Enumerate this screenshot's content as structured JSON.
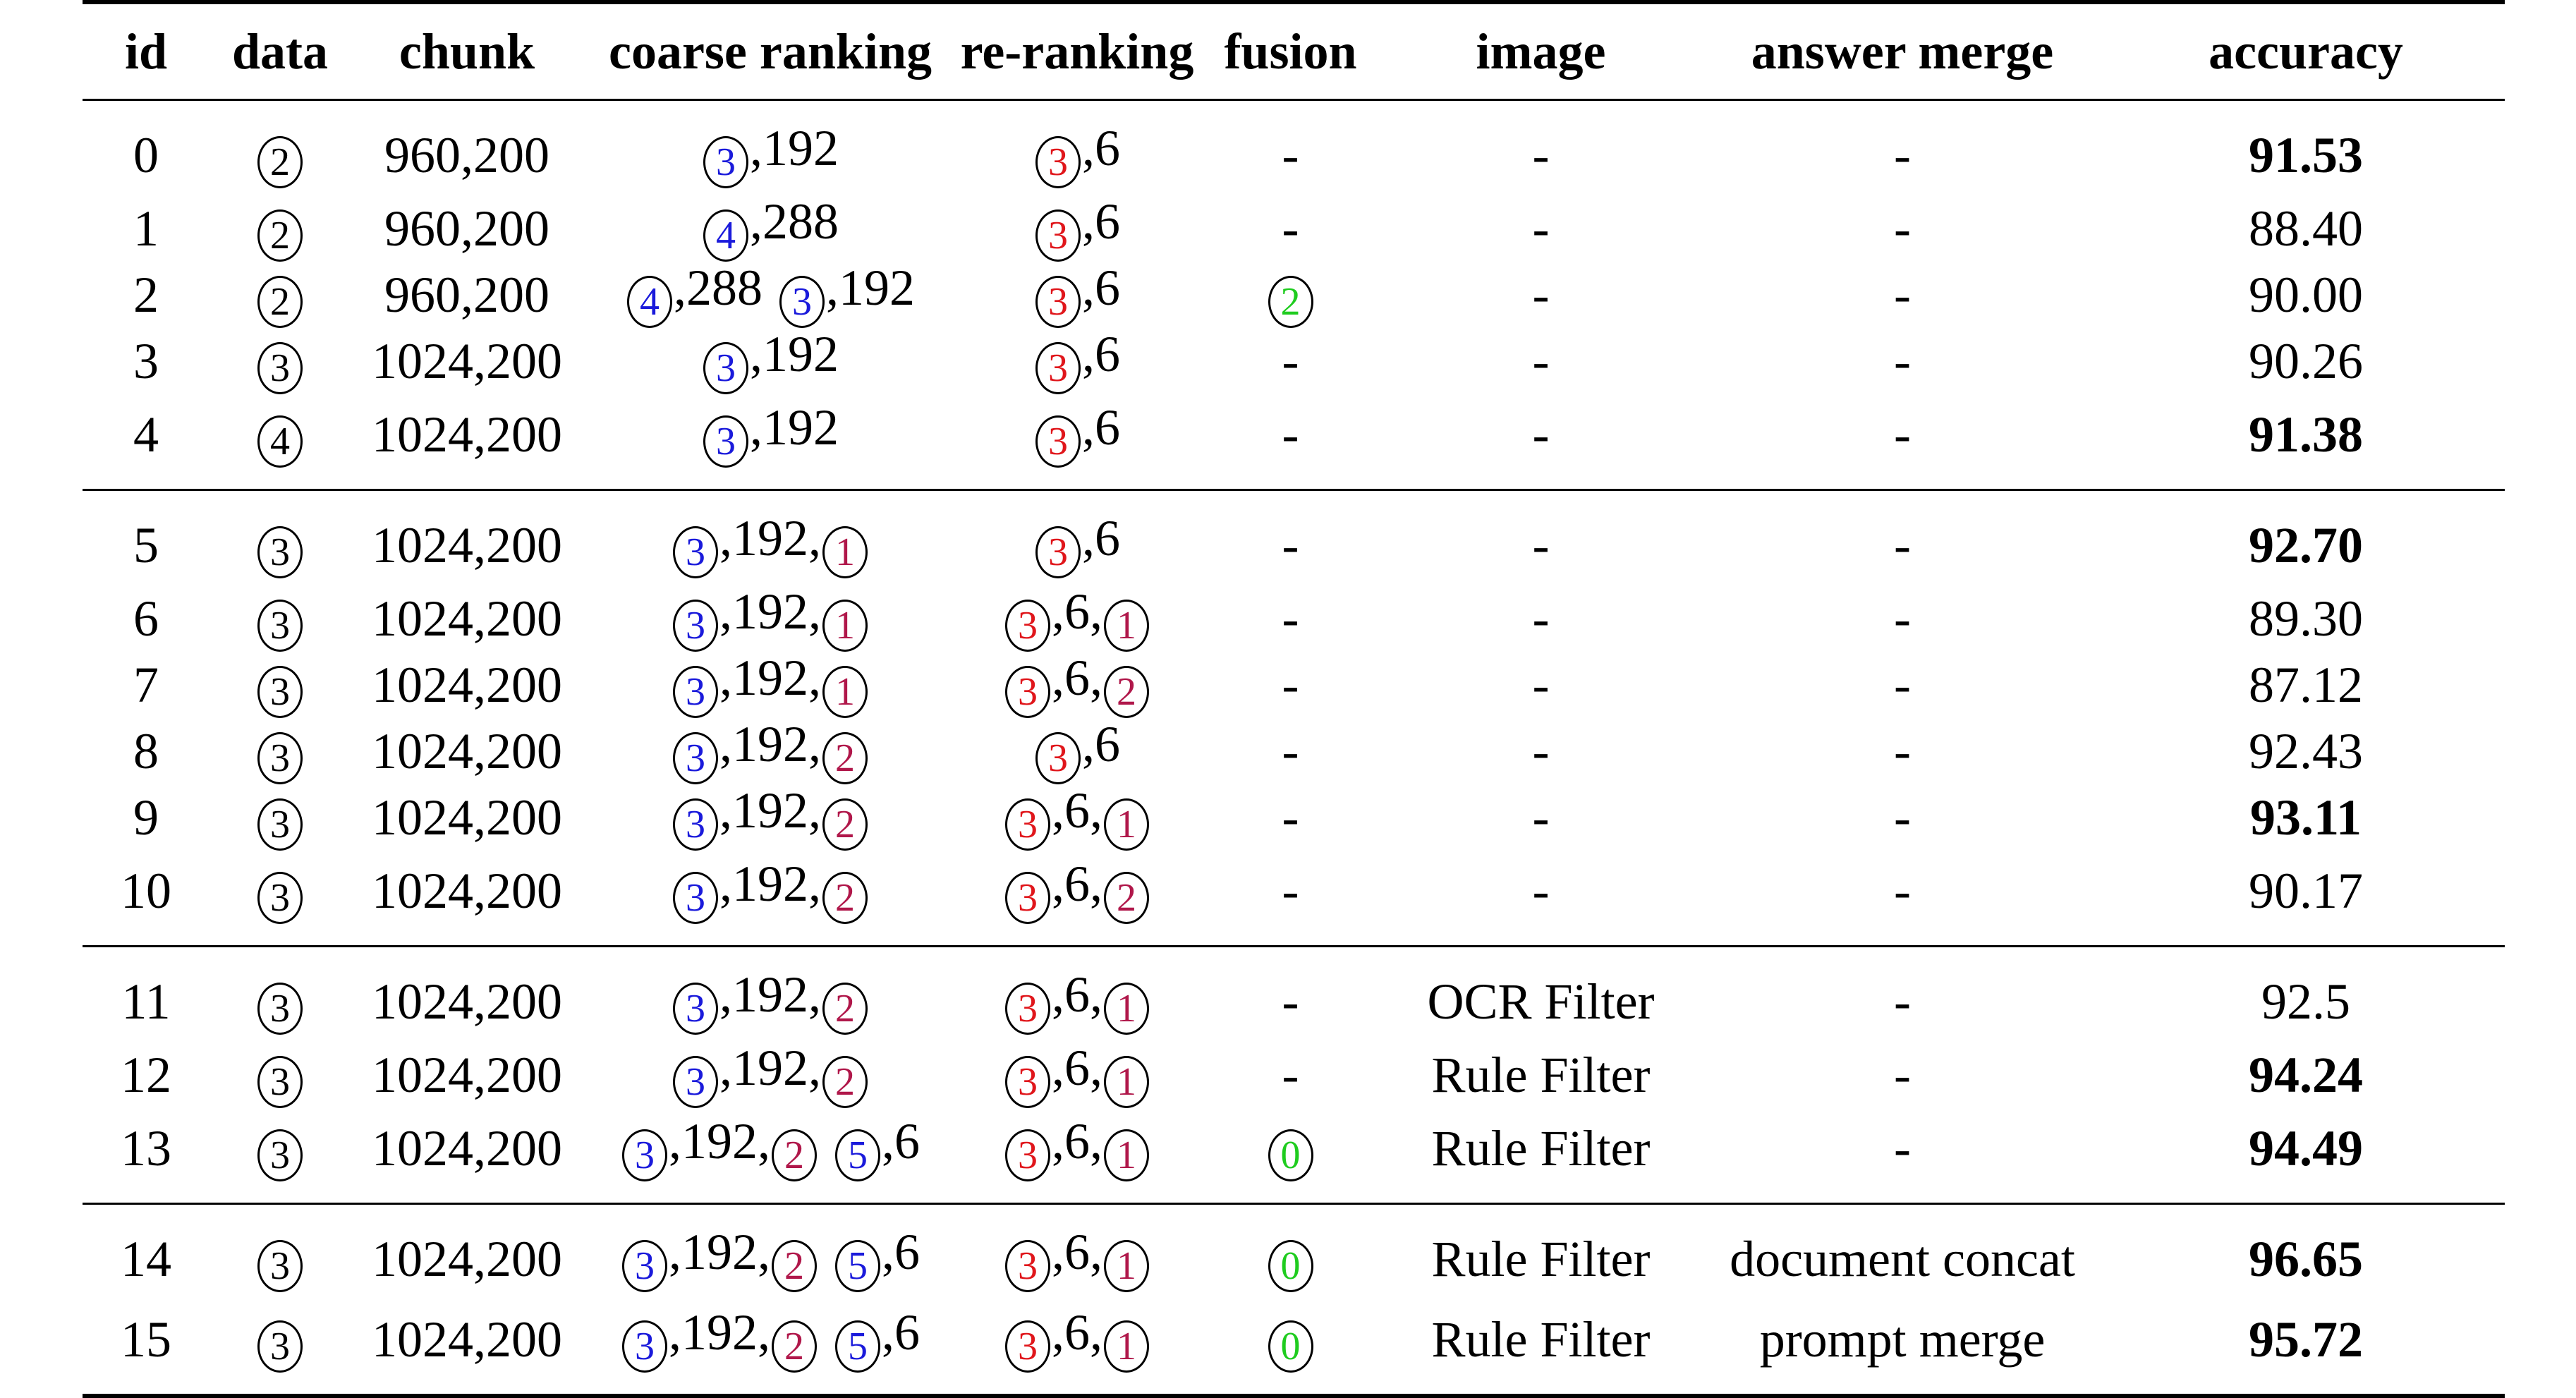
{
  "table": {
    "headers": {
      "id": "id",
      "data": "data",
      "chunk": "chunk",
      "coarse": "coarse ranking",
      "rerank": "re-ranking",
      "fusion": "fusion",
      "image": "image",
      "merge": "answer merge",
      "accuracy": "accuracy"
    },
    "colors": {
      "black": "#000000",
      "blue": "#1a1adb",
      "red": "#e0161b",
      "maroon": "#b0174a",
      "green": "#1fcc1f"
    },
    "groups": [
      [
        {
          "id": "0",
          "data": [
            {
              "c": "black",
              "n": "2"
            }
          ],
          "chunk": "960,200",
          "coarse": [
            {
              "c": "blue",
              "n": "3"
            },
            {
              "t": ",192"
            }
          ],
          "rerank": [
            {
              "c": "red",
              "n": "3"
            },
            {
              "t": ",6"
            }
          ],
          "fusion": [
            {
              "t": "-"
            }
          ],
          "image": "-",
          "merge": "-",
          "accuracy": "91.53",
          "bold": true
        },
        {
          "id": "1",
          "data": [
            {
              "c": "black",
              "n": "2"
            }
          ],
          "chunk": "960,200",
          "coarse": [
            {
              "c": "blue",
              "n": "4"
            },
            {
              "t": ",288"
            }
          ],
          "rerank": [
            {
              "c": "red",
              "n": "3"
            },
            {
              "t": ",6"
            }
          ],
          "fusion": [
            {
              "t": "-"
            }
          ],
          "image": "-",
          "merge": "-",
          "accuracy": "88.40",
          "bold": false
        },
        {
          "id": "2",
          "data": [
            {
              "c": "black",
              "n": "2"
            }
          ],
          "chunk": "960,200",
          "coarse": [
            {
              "c": "blue",
              "n": "4"
            },
            {
              "t": ",288"
            },
            {
              "g": true
            },
            {
              "c": "blue",
              "n": "3"
            },
            {
              "t": ",192"
            }
          ],
          "rerank": [
            {
              "c": "red",
              "n": "3"
            },
            {
              "t": ",6"
            }
          ],
          "fusion": [
            {
              "c": "green",
              "n": "2"
            }
          ],
          "image": "-",
          "merge": "-",
          "accuracy": "90.00",
          "bold": false
        },
        {
          "id": "3",
          "data": [
            {
              "c": "black",
              "n": "3"
            }
          ],
          "chunk": "1024,200",
          "coarse": [
            {
              "c": "blue",
              "n": "3"
            },
            {
              "t": ",192"
            }
          ],
          "rerank": [
            {
              "c": "red",
              "n": "3"
            },
            {
              "t": ",6"
            }
          ],
          "fusion": [
            {
              "t": "-"
            }
          ],
          "image": "-",
          "merge": "-",
          "accuracy": "90.26",
          "bold": false
        },
        {
          "id": "4",
          "data": [
            {
              "c": "black",
              "n": "4"
            }
          ],
          "chunk": "1024,200",
          "coarse": [
            {
              "c": "blue",
              "n": "3"
            },
            {
              "t": ",192"
            }
          ],
          "rerank": [
            {
              "c": "red",
              "n": "3"
            },
            {
              "t": ",6"
            }
          ],
          "fusion": [
            {
              "t": "-"
            }
          ],
          "image": "-",
          "merge": "-",
          "accuracy": "91.38",
          "bold": true
        }
      ],
      [
        {
          "id": "5",
          "data": [
            {
              "c": "black",
              "n": "3"
            }
          ],
          "chunk": "1024,200",
          "coarse": [
            {
              "c": "blue",
              "n": "3"
            },
            {
              "t": ",192,"
            },
            {
              "c": "maroon",
              "n": "1"
            }
          ],
          "rerank": [
            {
              "c": "red",
              "n": "3"
            },
            {
              "t": ",6"
            }
          ],
          "fusion": [
            {
              "t": "-"
            }
          ],
          "image": "-",
          "merge": "-",
          "accuracy": "92.70",
          "bold": true
        },
        {
          "id": "6",
          "data": [
            {
              "c": "black",
              "n": "3"
            }
          ],
          "chunk": "1024,200",
          "coarse": [
            {
              "c": "blue",
              "n": "3"
            },
            {
              "t": ",192,"
            },
            {
              "c": "maroon",
              "n": "1"
            }
          ],
          "rerank": [
            {
              "c": "red",
              "n": "3"
            },
            {
              "t": ",6,"
            },
            {
              "c": "maroon",
              "n": "1"
            }
          ],
          "fusion": [
            {
              "t": "-"
            }
          ],
          "image": "-",
          "merge": "-",
          "accuracy": "89.30",
          "bold": false
        },
        {
          "id": "7",
          "data": [
            {
              "c": "black",
              "n": "3"
            }
          ],
          "chunk": "1024,200",
          "coarse": [
            {
              "c": "blue",
              "n": "3"
            },
            {
              "t": ",192,"
            },
            {
              "c": "maroon",
              "n": "1"
            }
          ],
          "rerank": [
            {
              "c": "red",
              "n": "3"
            },
            {
              "t": ",6,"
            },
            {
              "c": "maroon",
              "n": "2"
            }
          ],
          "fusion": [
            {
              "t": "-"
            }
          ],
          "image": "-",
          "merge": "-",
          "accuracy": "87.12",
          "bold": false
        },
        {
          "id": "8",
          "data": [
            {
              "c": "black",
              "n": "3"
            }
          ],
          "chunk": "1024,200",
          "coarse": [
            {
              "c": "blue",
              "n": "3"
            },
            {
              "t": ",192,"
            },
            {
              "c": "maroon",
              "n": "2"
            }
          ],
          "rerank": [
            {
              "c": "red",
              "n": "3"
            },
            {
              "t": ",6"
            }
          ],
          "fusion": [
            {
              "t": "-"
            }
          ],
          "image": "-",
          "merge": "-",
          "accuracy": "92.43",
          "bold": false
        },
        {
          "id": "9",
          "data": [
            {
              "c": "black",
              "n": "3"
            }
          ],
          "chunk": "1024,200",
          "coarse": [
            {
              "c": "blue",
              "n": "3"
            },
            {
              "t": ",192,"
            },
            {
              "c": "maroon",
              "n": "2"
            }
          ],
          "rerank": [
            {
              "c": "red",
              "n": "3"
            },
            {
              "t": ",6,"
            },
            {
              "c": "maroon",
              "n": "1"
            }
          ],
          "fusion": [
            {
              "t": "-"
            }
          ],
          "image": "-",
          "merge": "-",
          "accuracy": "93.11",
          "bold": true
        },
        {
          "id": "10",
          "data": [
            {
              "c": "black",
              "n": "3"
            }
          ],
          "chunk": "1024,200",
          "coarse": [
            {
              "c": "blue",
              "n": "3"
            },
            {
              "t": ",192,"
            },
            {
              "c": "maroon",
              "n": "2"
            }
          ],
          "rerank": [
            {
              "c": "red",
              "n": "3"
            },
            {
              "t": ",6,"
            },
            {
              "c": "maroon",
              "n": "2"
            }
          ],
          "fusion": [
            {
              "t": "-"
            }
          ],
          "image": "-",
          "merge": "-",
          "accuracy": "90.17",
          "bold": false
        }
      ],
      [
        {
          "id": "11",
          "data": [
            {
              "c": "black",
              "n": "3"
            }
          ],
          "chunk": "1024,200",
          "coarse": [
            {
              "c": "blue",
              "n": "3"
            },
            {
              "t": ",192,"
            },
            {
              "c": "maroon",
              "n": "2"
            }
          ],
          "rerank": [
            {
              "c": "red",
              "n": "3"
            },
            {
              "t": ",6,"
            },
            {
              "c": "maroon",
              "n": "1"
            }
          ],
          "fusion": [
            {
              "t": "-"
            }
          ],
          "image": "OCR Filter",
          "merge": "-",
          "accuracy": "92.5",
          "bold": false
        },
        {
          "id": "12",
          "data": [
            {
              "c": "black",
              "n": "3"
            }
          ],
          "chunk": "1024,200",
          "coarse": [
            {
              "c": "blue",
              "n": "3"
            },
            {
              "t": ",192,"
            },
            {
              "c": "maroon",
              "n": "2"
            }
          ],
          "rerank": [
            {
              "c": "red",
              "n": "3"
            },
            {
              "t": ",6,"
            },
            {
              "c": "maroon",
              "n": "1"
            }
          ],
          "fusion": [
            {
              "t": "-"
            }
          ],
          "image": "Rule Filter",
          "merge": "-",
          "accuracy": "94.24",
          "bold": true
        },
        {
          "id": "13",
          "data": [
            {
              "c": "black",
              "n": "3"
            }
          ],
          "chunk": "1024,200",
          "coarse": [
            {
              "c": "blue",
              "n": "3"
            },
            {
              "t": ",192,"
            },
            {
              "c": "maroon",
              "n": "2"
            },
            {
              "g": true
            },
            {
              "c": "blue",
              "n": "5"
            },
            {
              "t": ",6"
            }
          ],
          "rerank": [
            {
              "c": "red",
              "n": "3"
            },
            {
              "t": ",6,"
            },
            {
              "c": "maroon",
              "n": "1"
            }
          ],
          "fusion": [
            {
              "c": "green",
              "n": "0"
            }
          ],
          "image": "Rule Filter",
          "merge": "-",
          "accuracy": "94.49",
          "bold": true
        }
      ],
      [
        {
          "id": "14",
          "data": [
            {
              "c": "black",
              "n": "3"
            }
          ],
          "chunk": "1024,200",
          "coarse": [
            {
              "c": "blue",
              "n": "3"
            },
            {
              "t": ",192,"
            },
            {
              "c": "maroon",
              "n": "2"
            },
            {
              "g": true
            },
            {
              "c": "blue",
              "n": "5"
            },
            {
              "t": ",6"
            }
          ],
          "rerank": [
            {
              "c": "red",
              "n": "3"
            },
            {
              "t": ",6,"
            },
            {
              "c": "maroon",
              "n": "1"
            }
          ],
          "fusion": [
            {
              "c": "green",
              "n": "0"
            }
          ],
          "image": "Rule Filter",
          "merge": "document concat",
          "accuracy": "96.65",
          "bold": true
        },
        {
          "id": "15",
          "data": [
            {
              "c": "black",
              "n": "3"
            }
          ],
          "chunk": "1024,200",
          "coarse": [
            {
              "c": "blue",
              "n": "3"
            },
            {
              "t": ",192,"
            },
            {
              "c": "maroon",
              "n": "2"
            },
            {
              "g": true
            },
            {
              "c": "blue",
              "n": "5"
            },
            {
              "t": ",6"
            }
          ],
          "rerank": [
            {
              "c": "red",
              "n": "3"
            },
            {
              "t": ",6,"
            },
            {
              "c": "maroon",
              "n": "1"
            }
          ],
          "fusion": [
            {
              "c": "green",
              "n": "0"
            }
          ],
          "image": "Rule Filter",
          "merge": "prompt merge",
          "accuracy": "95.72",
          "bold": true
        }
      ]
    ]
  }
}
